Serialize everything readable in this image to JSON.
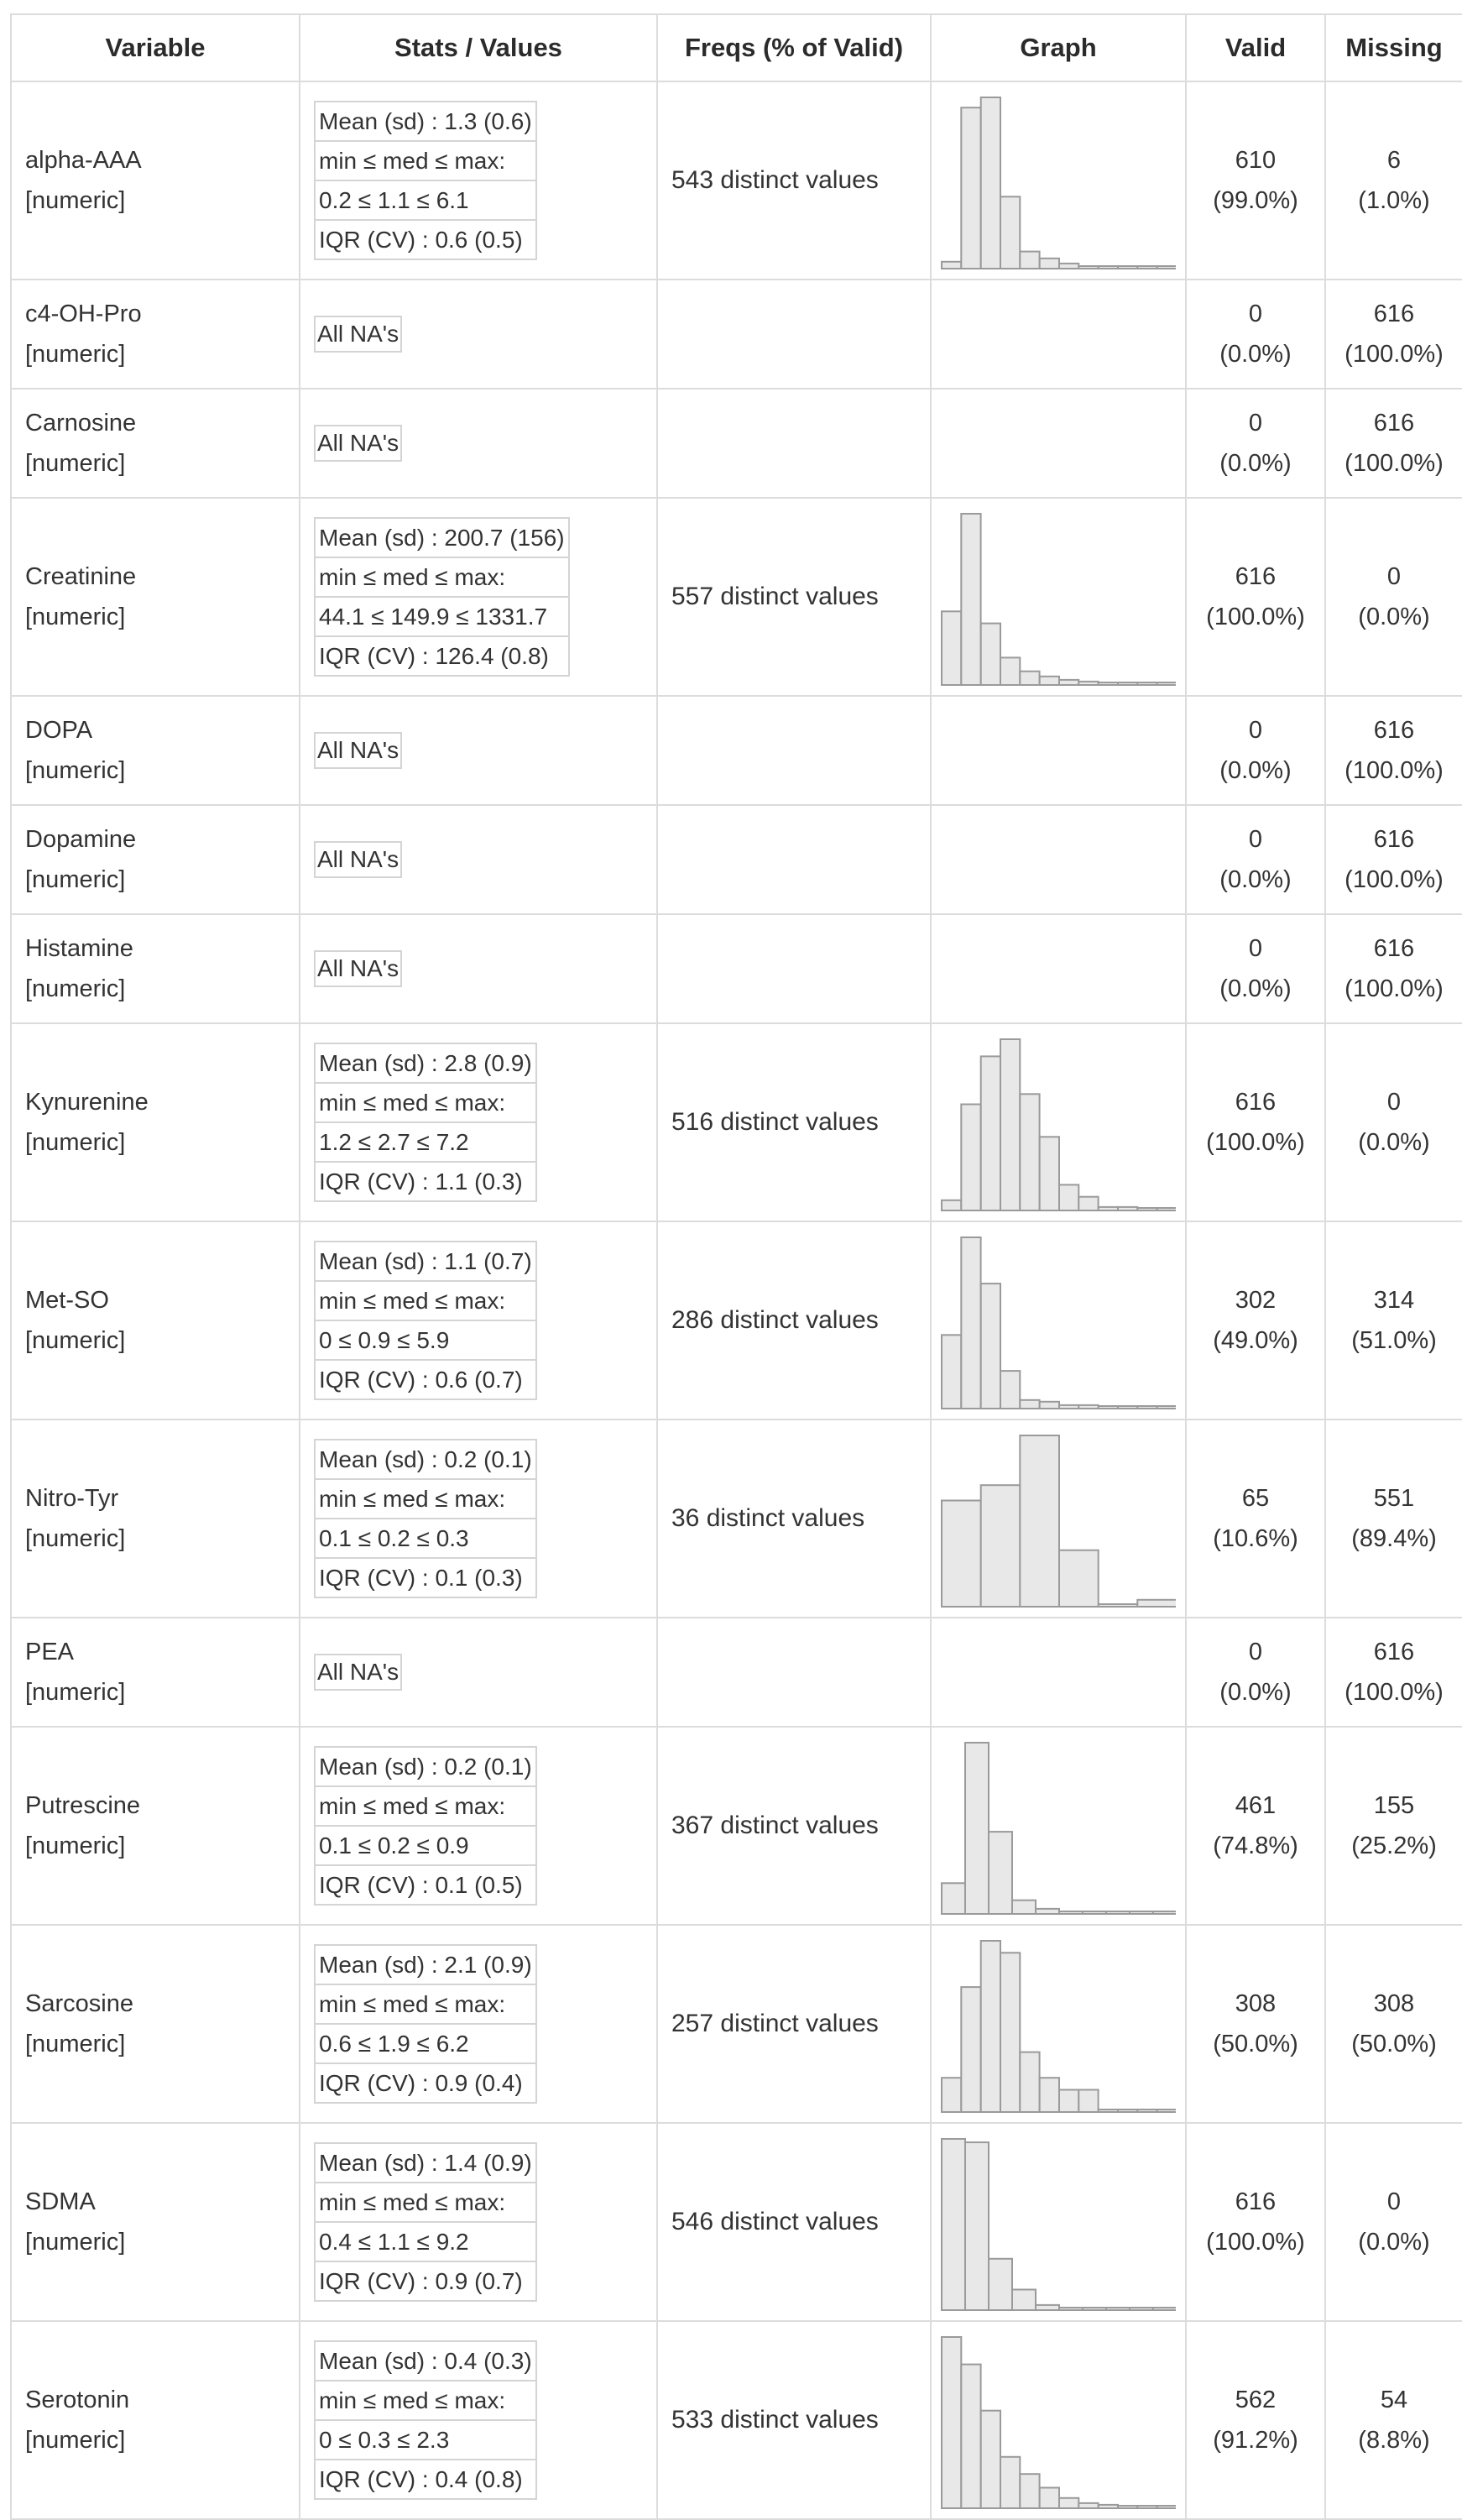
{
  "headers": [
    "Variable",
    "Stats / Values",
    "Freqs (% of Valid)",
    "Graph",
    "Valid",
    "Missing"
  ],
  "rows": [
    {
      "name": "alpha-AAA",
      "type": "[numeric]",
      "stats": [
        "Mean (sd) : 1.3 (0.6)",
        "min ≤ med ≤ max:",
        "0.2 ≤ 1.1 ≤ 6.1",
        "IQR (CV) : 0.6 (0.5)"
      ],
      "freq": "543 distinct values",
      "hist": [
        0.04,
        0.94,
        1.0,
        0.42,
        0.1,
        0.06,
        0.03,
        0.01,
        0,
        0,
        0,
        0.01
      ],
      "valid": "610",
      "valid_pct": "(99.0%)",
      "missing": "6",
      "missing_pct": "(1.0%)"
    },
    {
      "name": "c4-OH-Pro",
      "type": "[numeric]",
      "stats": [
        "All NA's"
      ],
      "freq": "",
      "hist": [],
      "valid": "0",
      "valid_pct": "(0.0%)",
      "missing": "616",
      "missing_pct": "(100.0%)"
    },
    {
      "name": "Carnosine",
      "type": "[numeric]",
      "stats": [
        "All NA's"
      ],
      "freq": "",
      "hist": [],
      "valid": "0",
      "valid_pct": "(0.0%)",
      "missing": "616",
      "missing_pct": "(100.0%)"
    },
    {
      "name": "Creatinine",
      "type": "[numeric]",
      "stats": [
        "Mean (sd) : 200.7 (156)",
        "min ≤ med ≤ max:",
        "44.1 ≤ 149.9 ≤ 1331.7",
        "IQR (CV) : 126.4 (0.8)"
      ],
      "freq": "557 distinct values",
      "hist": [
        0.43,
        1.0,
        0.36,
        0.16,
        0.08,
        0.05,
        0.03,
        0.02,
        0.01,
        0.005,
        0.005,
        0.005
      ],
      "valid": "616",
      "valid_pct": "(100.0%)",
      "missing": "0",
      "missing_pct": "(0.0%)"
    },
    {
      "name": "DOPA",
      "type": "[numeric]",
      "stats": [
        "All NA's"
      ],
      "freq": "",
      "hist": [],
      "valid": "0",
      "valid_pct": "(0.0%)",
      "missing": "616",
      "missing_pct": "(100.0%)"
    },
    {
      "name": "Dopamine",
      "type": "[numeric]",
      "stats": [
        "All NA's"
      ],
      "freq": "",
      "hist": [],
      "valid": "0",
      "valid_pct": "(0.0%)",
      "missing": "616",
      "missing_pct": "(100.0%)"
    },
    {
      "name": "Histamine",
      "type": "[numeric]",
      "stats": [
        "All NA's"
      ],
      "freq": "",
      "hist": [],
      "valid": "0",
      "valid_pct": "(0.0%)",
      "missing": "616",
      "missing_pct": "(100.0%)"
    },
    {
      "name": "Kynurenine",
      "type": "[numeric]",
      "stats": [
        "Mean (sd) : 2.8 (0.9)",
        "min ≤ med ≤ max:",
        "1.2 ≤ 2.7 ≤ 7.2",
        "IQR (CV) : 1.1 (0.3)"
      ],
      "freq": "516 distinct values",
      "hist": [
        0.06,
        0.62,
        0.9,
        1.0,
        0.68,
        0.43,
        0.15,
        0.08,
        0.02,
        0.02,
        0.01,
        0.01
      ],
      "valid": "616",
      "valid_pct": "(100.0%)",
      "missing": "0",
      "missing_pct": "(0.0%)"
    },
    {
      "name": "Met-SO",
      "type": "[numeric]",
      "stats": [
        "Mean (sd) : 1.1 (0.7)",
        "min ≤ med ≤ max:",
        "0 ≤ 0.9 ≤ 5.9",
        "IQR (CV) : 0.6 (0.7)"
      ],
      "freq": "286 distinct values",
      "hist": [
        0.43,
        1.0,
        0.73,
        0.22,
        0.05,
        0.04,
        0.02,
        0.02,
        0.01,
        0.01,
        0.005,
        0.01
      ],
      "valid": "302",
      "valid_pct": "(49.0%)",
      "missing": "314",
      "missing_pct": "(51.0%)"
    },
    {
      "name": "Nitro-Tyr",
      "type": "[numeric]",
      "stats": [
        "Mean (sd) : 0.2 (0.1)",
        "min ≤ med ≤ max:",
        "0.1 ≤ 0.2 ≤ 0.3",
        "IQR (CV) : 0.1 (0.3)"
      ],
      "freq": "36 distinct values",
      "hist": [
        0.62,
        0.71,
        1.0,
        0.33,
        0,
        0.04
      ],
      "valid": "65",
      "valid_pct": "(10.6%)",
      "missing": "551",
      "missing_pct": "(89.4%)"
    },
    {
      "name": "PEA",
      "type": "[numeric]",
      "stats": [
        "All NA's"
      ],
      "freq": "",
      "hist": [],
      "valid": "0",
      "valid_pct": "(0.0%)",
      "missing": "616",
      "missing_pct": "(100.0%)"
    },
    {
      "name": "Putrescine",
      "type": "[numeric]",
      "stats": [
        "Mean (sd) : 0.2 (0.1)",
        "min ≤ med ≤ max:",
        "0.1 ≤ 0.2 ≤ 0.9",
        "IQR (CV) : 0.1 (0.5)"
      ],
      "freq": "367 distinct values",
      "hist": [
        0.18,
        1.0,
        0.48,
        0.08,
        0.03,
        0.01,
        0,
        0,
        0,
        0
      ],
      "valid": "461",
      "valid_pct": "(74.8%)",
      "missing": "155",
      "missing_pct": "(25.2%)"
    },
    {
      "name": "Sarcosine",
      "type": "[numeric]",
      "stats": [
        "Mean (sd) : 2.1 (0.9)",
        "min ≤ med ≤ max:",
        "0.6 ≤ 1.9 ≤ 6.2",
        "IQR (CV) : 0.9 (0.4)"
      ],
      "freq": "257 distinct values",
      "hist": [
        0.2,
        0.73,
        1.0,
        0.93,
        0.35,
        0.2,
        0.13,
        0.13,
        0.01,
        0.01,
        0,
        0.01
      ],
      "valid": "308",
      "valid_pct": "(50.0%)",
      "missing": "308",
      "missing_pct": "(50.0%)"
    },
    {
      "name": "SDMA",
      "type": "[numeric]",
      "stats": [
        "Mean (sd) : 1.4 (0.9)",
        "min ≤ med ≤ max:",
        "0.4 ≤ 1.1 ≤ 9.2",
        "IQR (CV) : 0.9 (0.7)"
      ],
      "freq": "546 distinct values",
      "hist": [
        1.0,
        0.98,
        0.3,
        0.12,
        0.03,
        0.01,
        0.01,
        0,
        0,
        0
      ],
      "valid": "616",
      "valid_pct": "(100.0%)",
      "missing": "0",
      "missing_pct": "(0.0%)"
    },
    {
      "name": "Serotonin",
      "type": "[numeric]",
      "stats": [
        "Mean (sd) : 0.4 (0.3)",
        "min ≤ med ≤ max:",
        "0 ≤ 0.3 ≤ 2.3",
        "IQR (CV) : 0.4 (0.8)"
      ],
      "freq": "533 distinct values",
      "hist": [
        1.0,
        0.84,
        0.57,
        0.3,
        0.2,
        0.12,
        0.06,
        0.03,
        0.02,
        0.01,
        0.01,
        0.01
      ],
      "valid": "562",
      "valid_pct": "(91.2%)",
      "missing": "54",
      "missing_pct": "(8.8%)"
    }
  ]
}
